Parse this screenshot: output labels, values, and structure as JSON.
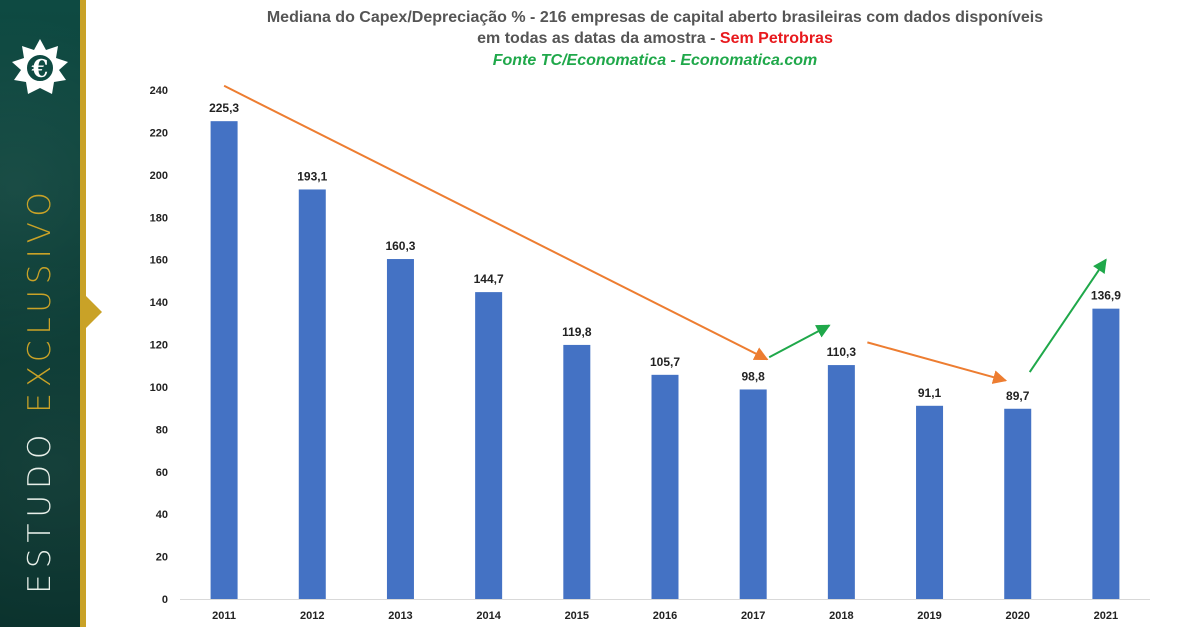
{
  "sidebar": {
    "logo_icon": "euro-star-logo-icon",
    "vertical_word1": "ESTUDO",
    "vertical_word2": "EXCLUSIVO",
    "colors": {
      "green": "#0e4a42",
      "gold": "#c9a227"
    }
  },
  "title": {
    "line1": "Mediana do Capex/Depreciação % - 216 empresas de capital aberto brasileiras com dados disponíveis",
    "line2_main": "em todas as datas da amostra -",
    "line2_highlight": "Sem Petrobras",
    "line3": "Fonte TC/Economatica - Economatica.com"
  },
  "chart_data": {
    "type": "bar",
    "categories": [
      "2011",
      "2012",
      "2013",
      "2014",
      "2015",
      "2016",
      "2017",
      "2018",
      "2019",
      "2020",
      "2021"
    ],
    "values": [
      225.3,
      193.1,
      160.3,
      144.7,
      119.8,
      105.7,
      98.8,
      110.3,
      91.1,
      89.7,
      136.9
    ],
    "value_labels": [
      "225,3",
      "193,1",
      "160,3",
      "144,7",
      "119,8",
      "105,7",
      "98,8",
      "110,3",
      "91,1",
      "89,7",
      "136,9"
    ],
    "ylim": [
      0,
      240
    ],
    "yticks": [
      0,
      20,
      40,
      60,
      80,
      100,
      120,
      140,
      160,
      180,
      200,
      220,
      240
    ],
    "bar_color": "#4472c4",
    "grid": false,
    "annotations": [
      {
        "type": "arrow",
        "color": "#ed7d31",
        "from": {
          "x": "2011",
          "y": 242
        },
        "to": {
          "x": "2017",
          "y": 113
        }
      },
      {
        "type": "arrow",
        "color": "#1fa84a",
        "from": {
          "x": "2017",
          "y": 114
        },
        "to": {
          "x": "2018",
          "y": 129
        }
      },
      {
        "type": "arrow",
        "color": "#ed7d31",
        "from": {
          "x": "2018",
          "y": 121
        },
        "to": {
          "x": "2020",
          "y": 103
        }
      },
      {
        "type": "arrow",
        "color": "#1fa84a",
        "from": {
          "x": "2020",
          "y": 107
        },
        "to": {
          "x": "2021",
          "y": 160
        }
      }
    ]
  }
}
